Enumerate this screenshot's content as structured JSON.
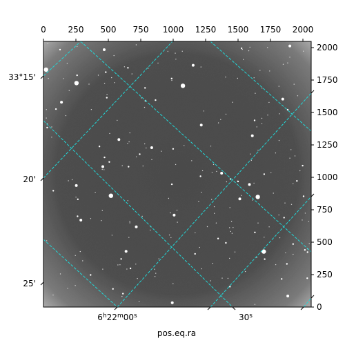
{
  "figure": {
    "xlabel": "pos.eq.ra",
    "top_axis_ticks": [
      "0",
      "250",
      "500",
      "750",
      "1000",
      "1250",
      "1500",
      "1750",
      "2000"
    ],
    "right_axis_ticks": [
      "0",
      "250",
      "500",
      "750",
      "1000",
      "1250",
      "1500",
      "1750",
      "2000"
    ],
    "dec_ticks": [
      "33°15'",
      "20'",
      "25'"
    ],
    "ra_ticks": [
      "6h22m00s",
      "30s"
    ],
    "ra_tick_main": "6",
    "ra_tick_h": "h",
    "ra_tick_mid": "22",
    "ra_tick_m": "m",
    "ra_tick_end": "00",
    "ra_tick_s": "s",
    "ra_tick2_main": "30",
    "ra_tick2_s": "s",
    "grid_color": "#22d8d8",
    "image_colormap": "gray"
  }
}
